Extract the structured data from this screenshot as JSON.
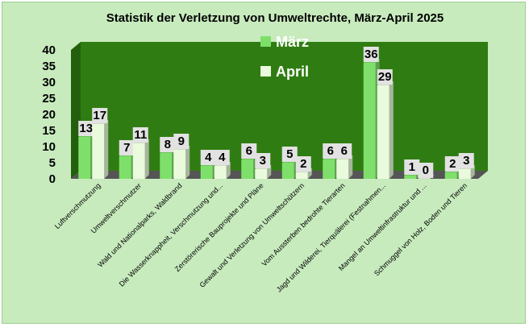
{
  "chart_data": {
    "type": "bar",
    "title": "Statistik der Verletzung von Umweltrechte, März-April 2025",
    "categories": [
      "Luftverschmutzung",
      "Umweltverschmutzer",
      "Wald und Nationalparks, Waldbrand",
      "Die Wasserknappheit, Verschmutzung und...",
      "Zerstörerische Bauprojekte und Pläne",
      "Gewalt und Verletzung von Umweltschützern",
      "Vom Aussterben bedrohte Tierarten",
      "Jagd und Wilderei, Tierquälerei (Festnahmen...",
      "Mangel an Umweltinfrastruktur und ...",
      "Schmuggel von Holz, Boden und Tieren"
    ],
    "series": [
      {
        "name": "März",
        "values": [
          13,
          7,
          8,
          4,
          6,
          5,
          6,
          36,
          1,
          2
        ]
      },
      {
        "name": "April",
        "values": [
          17,
          11,
          9,
          4,
          3,
          2,
          6,
          29,
          0,
          3
        ]
      }
    ],
    "ylim": [
      0,
      40
    ],
    "yticks": [
      0,
      5,
      10,
      15,
      20,
      25,
      30,
      35,
      40
    ],
    "legend_position": "top-right",
    "grid": false,
    "colors": {
      "march": "#7ee06a",
      "april": "#e9fbdc",
      "wall": "#2f7d12",
      "floor": "#555555",
      "background": "#c7ebbd"
    }
  }
}
